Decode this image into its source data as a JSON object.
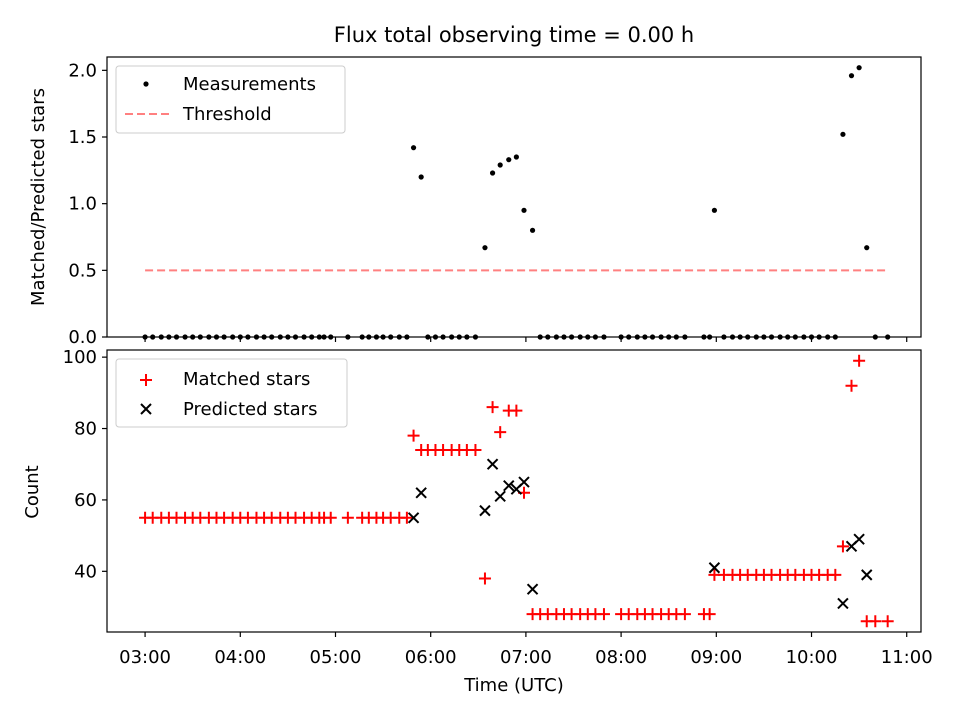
{
  "figure": {
    "title": "Flux total observing time = 0.00 h"
  },
  "chart_data": [
    {
      "type": "scatter",
      "panel": "top",
      "ylabel": "Matched/Predicted stars",
      "ylim": [
        0,
        2.1
      ],
      "yticks": [
        0,
        0.5,
        1,
        1.5,
        2
      ],
      "ytick_labels": [
        "0.0",
        "0.5",
        "1.0",
        "1.5",
        "2.0"
      ],
      "xlim": [
        2.6,
        11.15
      ],
      "legend_position": "top-left",
      "series": [
        {
          "name": "Measurements",
          "kind": "scatter",
          "marker": "dot",
          "color": "#000000",
          "x": [
            3.0,
            3.08,
            3.17,
            3.25,
            3.33,
            3.42,
            3.5,
            3.58,
            3.67,
            3.75,
            3.83,
            3.92,
            4.0,
            4.08,
            4.17,
            4.25,
            4.33,
            4.42,
            4.5,
            4.58,
            4.67,
            4.75,
            4.83,
            4.88,
            4.95,
            5.13,
            5.28,
            5.35,
            5.43,
            5.5,
            5.58,
            5.67,
            5.75,
            5.82,
            5.9,
            5.97,
            6.05,
            6.13,
            6.22,
            6.3,
            6.38,
            6.47,
            6.57,
            6.65,
            6.73,
            6.82,
            6.9,
            6.98,
            7.07,
            7.15,
            7.23,
            7.32,
            7.4,
            7.48,
            7.57,
            7.65,
            7.73,
            7.82,
            8.0,
            8.08,
            8.17,
            8.25,
            8.33,
            8.42,
            8.5,
            8.58,
            8.67,
            8.87,
            8.93,
            8.98,
            9.08,
            9.17,
            9.25,
            9.33,
            9.42,
            9.5,
            9.58,
            9.67,
            9.75,
            9.83,
            9.92,
            10.0,
            10.08,
            10.17,
            10.25,
            10.33,
            10.42,
            10.5,
            10.58,
            10.67,
            10.8
          ],
          "y": [
            0,
            0,
            0,
            0,
            0,
            0,
            0,
            0,
            0,
            0,
            0,
            0,
            0,
            0,
            0,
            0,
            0,
            0,
            0,
            0,
            0,
            0,
            0,
            0,
            0,
            0,
            0,
            0,
            0,
            0,
            0,
            0,
            0,
            1.42,
            1.2,
            0,
            0,
            0,
            0,
            0,
            0,
            0,
            0.67,
            1.23,
            1.29,
            1.33,
            1.35,
            0.95,
            0.8,
            0,
            0,
            0,
            0,
            0,
            0,
            0,
            0,
            0,
            0,
            0,
            0,
            0,
            0,
            0,
            0,
            0,
            0,
            0,
            0,
            0.95,
            0,
            0,
            0,
            0,
            0,
            0,
            0,
            0,
            0,
            0,
            0,
            0,
            0,
            0,
            0,
            1.52,
            1.96,
            2.02,
            0.67,
            0,
            0
          ]
        },
        {
          "name": "Threshold",
          "kind": "line",
          "style": "dashed",
          "color": "#ff8080",
          "x": [
            3.0,
            10.8
          ],
          "y": [
            0.5,
            0.5
          ]
        }
      ]
    },
    {
      "type": "scatter",
      "panel": "bottom",
      "ylabel": "Count",
      "xlabel": "Time (UTC)",
      "ylim": [
        23,
        102
      ],
      "yticks": [
        40,
        60,
        80,
        100
      ],
      "ytick_labels": [
        "40",
        "60",
        "80",
        "100"
      ],
      "xlim": [
        2.6,
        11.15
      ],
      "xticks": [
        3,
        4,
        5,
        6,
        7,
        8,
        9,
        10,
        11
      ],
      "xtick_labels": [
        "03:00",
        "04:00",
        "05:00",
        "06:00",
        "07:00",
        "08:00",
        "09:00",
        "10:00",
        "11:00"
      ],
      "legend_position": "top-left",
      "series": [
        {
          "name": "Matched stars",
          "kind": "scatter",
          "marker": "plus",
          "color": "#ff0000",
          "x": [
            3.0,
            3.08,
            3.17,
            3.25,
            3.33,
            3.42,
            3.5,
            3.58,
            3.67,
            3.75,
            3.83,
            3.92,
            4.0,
            4.08,
            4.17,
            4.25,
            4.33,
            4.42,
            4.5,
            4.58,
            4.67,
            4.75,
            4.83,
            4.88,
            4.95,
            5.13,
            5.28,
            5.35,
            5.43,
            5.5,
            5.58,
            5.67,
            5.75,
            5.82,
            5.9,
            5.97,
            6.05,
            6.13,
            6.22,
            6.3,
            6.38,
            6.47,
            6.57,
            6.65,
            6.73,
            6.82,
            6.9,
            6.98,
            7.07,
            7.15,
            7.23,
            7.32,
            7.4,
            7.48,
            7.57,
            7.65,
            7.73,
            7.82,
            8.0,
            8.08,
            8.17,
            8.25,
            8.33,
            8.42,
            8.5,
            8.58,
            8.67,
            8.87,
            8.93,
            8.98,
            9.08,
            9.17,
            9.25,
            9.33,
            9.42,
            9.5,
            9.58,
            9.67,
            9.75,
            9.83,
            9.92,
            10.0,
            10.08,
            10.17,
            10.25,
            10.33,
            10.42,
            10.5,
            10.58,
            10.67,
            10.8
          ],
          "y": [
            55,
            55,
            55,
            55,
            55,
            55,
            55,
            55,
            55,
            55,
            55,
            55,
            55,
            55,
            55,
            55,
            55,
            55,
            55,
            55,
            55,
            55,
            55,
            55,
            55,
            55,
            55,
            55,
            55,
            55,
            55,
            55,
            55,
            78,
            74,
            74,
            74,
            74,
            74,
            74,
            74,
            74,
            38,
            86,
            79,
            85,
            85,
            62,
            28,
            28,
            28,
            28,
            28,
            28,
            28,
            28,
            28,
            28,
            28,
            28,
            28,
            28,
            28,
            28,
            28,
            28,
            28,
            28,
            28,
            39,
            39,
            39,
            39,
            39,
            39,
            39,
            39,
            39,
            39,
            39,
            39,
            39,
            39,
            39,
            39,
            47,
            92,
            99,
            26,
            26,
            26
          ]
        },
        {
          "name": "Predicted stars",
          "kind": "scatter",
          "marker": "cross",
          "color": "#000000",
          "x": [
            5.82,
            5.9,
            6.57,
            6.65,
            6.73,
            6.82,
            6.9,
            6.98,
            7.07,
            8.98,
            10.33,
            10.42,
            10.5,
            10.58
          ],
          "y": [
            55,
            62,
            57,
            70,
            61,
            64,
            63,
            65,
            35,
            41,
            31,
            47,
            49,
            39
          ]
        }
      ]
    }
  ]
}
